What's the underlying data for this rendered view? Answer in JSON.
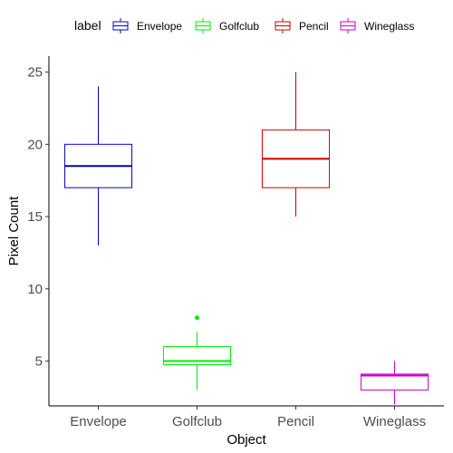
{
  "chart_data": {
    "type": "boxplot",
    "xlabel": "Object",
    "ylabel": "Pixel Count",
    "ylim": [
      1.9,
      26.1
    ],
    "yticks": [
      5,
      10,
      15,
      20,
      25
    ],
    "legend": {
      "title": "label",
      "position": "top",
      "items": [
        "Envelope",
        "Golfclub",
        "Pencil",
        "Wineglass"
      ]
    },
    "grid": false,
    "categories": [
      "Envelope",
      "Golfclub",
      "Pencil",
      "Wineglass"
    ],
    "series": [
      {
        "name": "Envelope",
        "color": "#0000cc",
        "min": 13,
        "q1": 17,
        "median": 18.5,
        "q3": 20,
        "max": 24,
        "outliers": []
      },
      {
        "name": "Golfclub",
        "color": "#00ee00",
        "min": 3,
        "q1": 4.75,
        "median": 5,
        "q3": 6,
        "max": 7,
        "outliers": [
          8
        ]
      },
      {
        "name": "Pencil",
        "color": "#cc0000",
        "min": 15,
        "q1": 17,
        "median": 19,
        "q3": 21,
        "max": 25,
        "outliers": []
      },
      {
        "name": "Wineglass",
        "color": "#cc00cc",
        "min": 2,
        "q1": 3,
        "median": 4,
        "q3": 4.1,
        "max": 5,
        "outliers": []
      }
    ]
  }
}
